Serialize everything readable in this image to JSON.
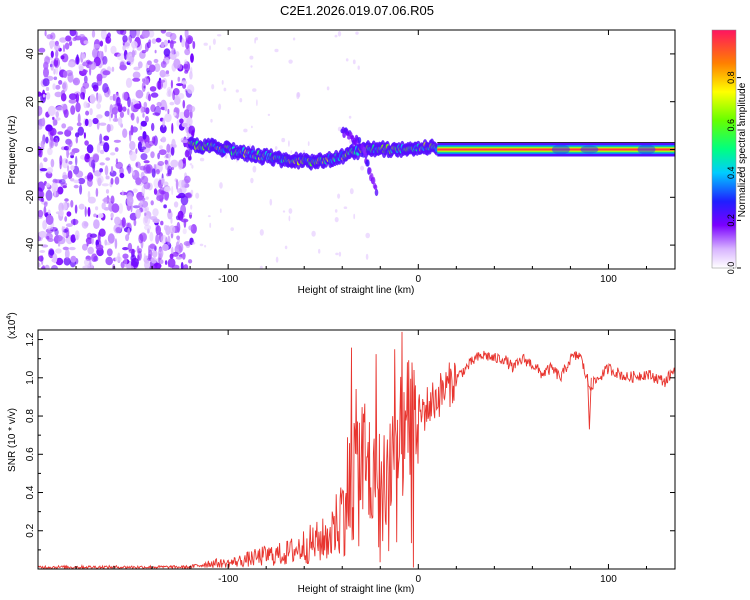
{
  "title": "C2E1.2026.019.07.06.R05",
  "chart_data": [
    {
      "type": "heatmap",
      "xlabel": "Height of straight line (km)",
      "ylabel": "Frequency (Hz)",
      "xlim": [
        -200,
        135
      ],
      "ylim": [
        -50,
        50
      ],
      "xticks": [
        -100,
        0,
        100
      ],
      "yticks": [
        -40,
        -20,
        0,
        20,
        40
      ],
      "colorbar": {
        "label": "Normalized spectral amplitude",
        "range": [
          0,
          1
        ],
        "ticks": [
          "0.0",
          "0.2",
          "0.4",
          "0.6",
          "0.8"
        ]
      },
      "features": [
        {
          "name": "noise",
          "x_range": [
            -200,
            -120
          ],
          "freq_range": [
            -50,
            50
          ],
          "amplitude": 0.15
        },
        {
          "name": "drifting-line",
          "x": [
            -120,
            -100,
            -80,
            -60,
            -45,
            -30,
            -15,
            0,
            10
          ],
          "freq": [
            2,
            0,
            -3,
            -5,
            -4,
            0,
            0,
            1,
            1
          ],
          "amplitude": 0.45
        },
        {
          "name": "branch",
          "x": [
            -40,
            -30,
            -22
          ],
          "freq": [
            8,
            2,
            -18
          ],
          "amplitude": 0.15
        },
        {
          "name": "steady-line",
          "x_range": [
            10,
            135
          ],
          "freq": 0,
          "amplitude": 0.95
        }
      ]
    },
    {
      "type": "line",
      "xlabel": "Height of straight line (km)",
      "ylabel": "SNR (10 * v/v)",
      "yscale_label": "(x10",
      "yscale_exp": "4",
      "yscale_close": ")",
      "xlim": [
        -200,
        135
      ],
      "ylim": [
        0,
        1.25
      ],
      "xticks": [
        -100,
        0,
        100
      ],
      "yticks": [
        "0.2",
        "0.4",
        "0.6",
        "0.8",
        "1.0",
        "1.2"
      ],
      "color": "#e8352f",
      "series": [
        {
          "name": "SNR",
          "x": [
            -200,
            -150,
            -120,
            -110,
            -100,
            -90,
            -80,
            -70,
            -60,
            -50,
            -45,
            -40,
            -35,
            -30,
            -25,
            -20,
            -15,
            -10,
            -5,
            0,
            5,
            10,
            20,
            25,
            30,
            35,
            40,
            45,
            50,
            55,
            60,
            65,
            70,
            75,
            80,
            85,
            90,
            95,
            100,
            110,
            120,
            130,
            135
          ],
          "y": [
            0.01,
            0.01,
            0.01,
            0.03,
            0.03,
            0.05,
            0.07,
            0.08,
            0.12,
            0.15,
            0.2,
            0.3,
            0.5,
            0.55,
            0.5,
            0.45,
            0.55,
            0.65,
            0.75,
            0.8,
            0.85,
            0.9,
            1.0,
            1.05,
            1.1,
            1.12,
            1.1,
            1.1,
            1.05,
            1.1,
            1.07,
            1.02,
            1.05,
            1.0,
            1.1,
            1.12,
            0.95,
            1.0,
            1.05,
            1.0,
            1.02,
            0.98,
            1.05
          ]
        }
      ]
    }
  ]
}
